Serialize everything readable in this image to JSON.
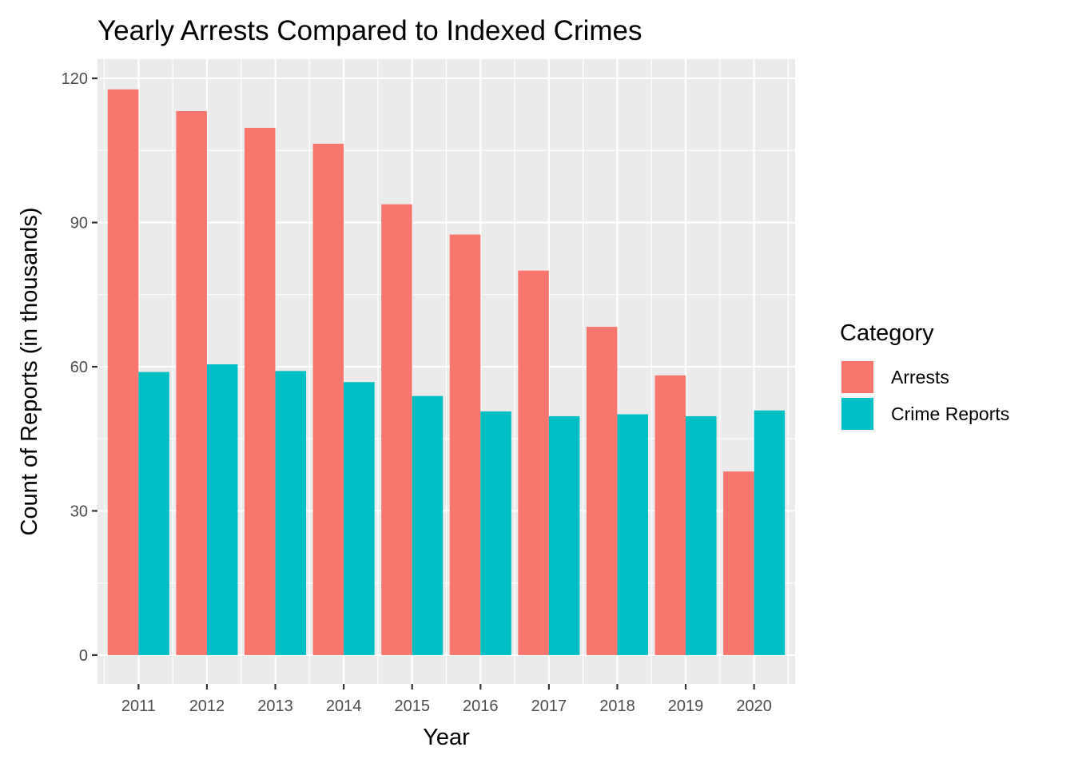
{
  "chart_data": {
    "type": "bar",
    "title": "Yearly Arrests Compared to Indexed Crimes",
    "xlabel": "Year",
    "ylabel": "Count of Reports (in thousands)",
    "categories": [
      "2011",
      "2012",
      "2013",
      "2014",
      "2015",
      "2016",
      "2017",
      "2018",
      "2019",
      "2020"
    ],
    "ylim": [
      -6,
      124
    ],
    "yticks": [
      0,
      30,
      60,
      90,
      120
    ],
    "grid": true,
    "legend": {
      "title": "Category",
      "placement": "right"
    },
    "series": [
      {
        "name": "Arrests",
        "color": "#F8766D",
        "values": [
          117.7,
          113.2,
          109.7,
          106.4,
          93.8,
          87.5,
          80.0,
          68.3,
          58.2,
          38.2
        ]
      },
      {
        "name": "Crime Reports",
        "color": "#00BFC4",
        "values": [
          58.9,
          60.5,
          59.1,
          56.8,
          53.9,
          50.7,
          49.7,
          50.1,
          49.7,
          50.9
        ]
      }
    ]
  }
}
